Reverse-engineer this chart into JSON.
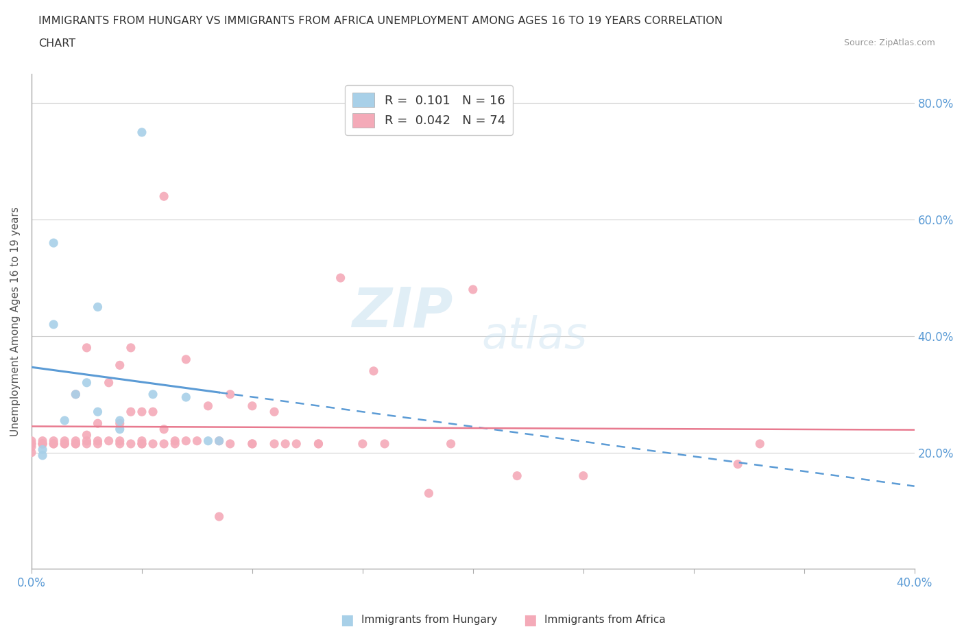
{
  "title_line1": "IMMIGRANTS FROM HUNGARY VS IMMIGRANTS FROM AFRICA UNEMPLOYMENT AMONG AGES 16 TO 19 YEARS CORRELATION",
  "title_line2": "CHART",
  "source": "Source: ZipAtlas.com",
  "ylabel_left": "Unemployment Among Ages 16 to 19 years",
  "xlim": [
    0.0,
    0.4
  ],
  "ylim": [
    0.0,
    0.85
  ],
  "xtick_positions": [
    0.0,
    0.05,
    0.1,
    0.15,
    0.2,
    0.25,
    0.3,
    0.35,
    0.4
  ],
  "xtick_labels": [
    "0.0%",
    "",
    "",
    "",
    "",
    "",
    "",
    "",
    "40.0%"
  ],
  "yticks_right": [
    0.2,
    0.4,
    0.6,
    0.8
  ],
  "ytick_labels_right": [
    "20.0%",
    "40.0%",
    "60.0%",
    "80.0%"
  ],
  "hungary_R": 0.101,
  "hungary_N": 16,
  "africa_R": 0.042,
  "africa_N": 74,
  "hungary_color": "#a8d0e8",
  "africa_color": "#f4aab8",
  "hungary_trend_color": "#5b9bd5",
  "africa_trend_color": "#e87a8f",
  "watermark_zip": "ZIP",
  "watermark_atlas": "atlas",
  "hungary_x": [
    0.005,
    0.005,
    0.01,
    0.01,
    0.015,
    0.02,
    0.025,
    0.03,
    0.03,
    0.04,
    0.04,
    0.05,
    0.055,
    0.07,
    0.08,
    0.085
  ],
  "hungary_y": [
    0.205,
    0.195,
    0.56,
    0.42,
    0.255,
    0.3,
    0.32,
    0.45,
    0.27,
    0.255,
    0.24,
    0.75,
    0.3,
    0.295,
    0.22,
    0.22
  ],
  "africa_x": [
    0.0,
    0.0,
    0.0,
    0.0,
    0.0,
    0.005,
    0.005,
    0.005,
    0.005,
    0.01,
    0.01,
    0.01,
    0.015,
    0.015,
    0.015,
    0.02,
    0.02,
    0.02,
    0.02,
    0.025,
    0.025,
    0.025,
    0.025,
    0.03,
    0.03,
    0.03,
    0.035,
    0.035,
    0.04,
    0.04,
    0.04,
    0.04,
    0.045,
    0.045,
    0.045,
    0.05,
    0.05,
    0.05,
    0.05,
    0.055,
    0.055,
    0.06,
    0.06,
    0.06,
    0.065,
    0.065,
    0.07,
    0.07,
    0.075,
    0.08,
    0.085,
    0.085,
    0.09,
    0.09,
    0.1,
    0.1,
    0.1,
    0.11,
    0.11,
    0.115,
    0.12,
    0.13,
    0.13,
    0.14,
    0.15,
    0.155,
    0.16,
    0.18,
    0.19,
    0.2,
    0.22,
    0.25,
    0.32,
    0.33
  ],
  "africa_y": [
    0.2,
    0.21,
    0.215,
    0.22,
    0.215,
    0.215,
    0.215,
    0.22,
    0.215,
    0.22,
    0.215,
    0.215,
    0.215,
    0.22,
    0.215,
    0.215,
    0.22,
    0.215,
    0.3,
    0.215,
    0.22,
    0.23,
    0.38,
    0.22,
    0.215,
    0.25,
    0.22,
    0.32,
    0.215,
    0.22,
    0.25,
    0.35,
    0.215,
    0.27,
    0.38,
    0.22,
    0.215,
    0.215,
    0.27,
    0.215,
    0.27,
    0.215,
    0.24,
    0.64,
    0.22,
    0.215,
    0.22,
    0.36,
    0.22,
    0.28,
    0.09,
    0.22,
    0.215,
    0.3,
    0.215,
    0.215,
    0.28,
    0.215,
    0.27,
    0.215,
    0.215,
    0.215,
    0.215,
    0.5,
    0.215,
    0.34,
    0.215,
    0.13,
    0.215,
    0.48,
    0.16,
    0.16,
    0.18,
    0.215
  ]
}
